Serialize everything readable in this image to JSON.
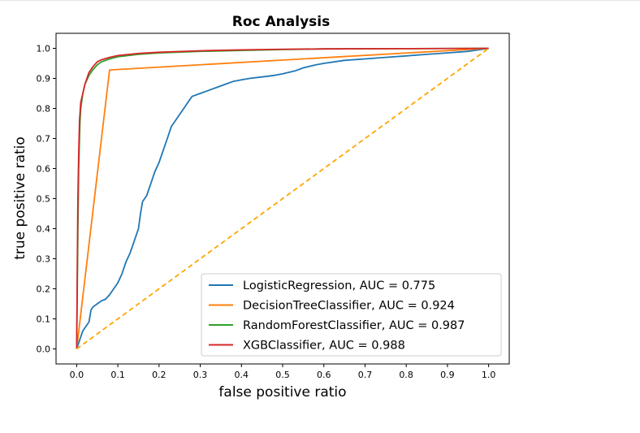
{
  "chart_data": {
    "type": "line",
    "title": "Roc Analysis",
    "xlabel": "false positive ratio",
    "ylabel": "true positive ratio",
    "xlim": [
      -0.05,
      1.05
    ],
    "ylim": [
      -0.05,
      1.05
    ],
    "xticks": [
      0.0,
      0.1,
      0.2,
      0.3,
      0.4,
      0.5,
      0.6,
      0.7,
      0.8,
      0.9,
      1.0
    ],
    "xtick_labels": [
      "0.0",
      "0.1",
      "0.2",
      "0.3",
      "0.4",
      "0.5",
      "0.6",
      "0.7",
      "0.8",
      "0.9",
      "1.0"
    ],
    "yticks": [
      0.0,
      0.1,
      0.2,
      0.3,
      0.4,
      0.5,
      0.6,
      0.7,
      0.8,
      0.9,
      1.0
    ],
    "ytick_labels": [
      "0.0",
      "0.1",
      "0.2",
      "0.3",
      "0.4",
      "0.5",
      "0.6",
      "0.7",
      "0.8",
      "0.9",
      "1.0"
    ],
    "legend_position": "lower-right",
    "series": [
      {
        "name": "LogisticRegression,  AUC = 0.775",
        "color": "#1f77b4",
        "x": [
          0,
          0.005,
          0.01,
          0.015,
          0.02,
          0.03,
          0.035,
          0.04,
          0.05,
          0.06,
          0.07,
          0.08,
          0.09,
          0.1,
          0.11,
          0.115,
          0.12,
          0.13,
          0.14,
          0.15,
          0.155,
          0.16,
          0.17,
          0.175,
          0.18,
          0.185,
          0.19,
          0.2,
          0.21,
          0.22,
          0.23,
          0.24,
          0.25,
          0.26,
          0.27,
          0.28,
          0.3,
          0.32,
          0.34,
          0.36,
          0.38,
          0.4,
          0.42,
          0.45,
          0.48,
          0.5,
          0.53,
          0.55,
          0.58,
          0.6,
          0.65,
          0.7,
          0.75,
          0.8,
          0.85,
          0.9,
          0.95,
          1.0
        ],
        "y": [
          0,
          0.02,
          0.04,
          0.06,
          0.07,
          0.09,
          0.13,
          0.14,
          0.15,
          0.16,
          0.165,
          0.18,
          0.2,
          0.22,
          0.25,
          0.27,
          0.29,
          0.32,
          0.36,
          0.4,
          0.45,
          0.49,
          0.51,
          0.53,
          0.55,
          0.57,
          0.59,
          0.62,
          0.66,
          0.7,
          0.74,
          0.76,
          0.78,
          0.8,
          0.82,
          0.84,
          0.85,
          0.86,
          0.87,
          0.88,
          0.89,
          0.895,
          0.9,
          0.905,
          0.91,
          0.915,
          0.925,
          0.935,
          0.945,
          0.95,
          0.96,
          0.965,
          0.97,
          0.975,
          0.98,
          0.985,
          0.99,
          1.0
        ]
      },
      {
        "name": "DecisionTreeClassifier,  AUC = 0.924",
        "color": "#ff7f0e",
        "x": [
          0,
          0.08,
          1.0
        ],
        "y": [
          0,
          0.928,
          1.0
        ]
      },
      {
        "name": "RandomForestClassifier,  AUC = 0.987",
        "color": "#2ca02c",
        "x": [
          0,
          0.003,
          0.005,
          0.008,
          0.01,
          0.015,
          0.02,
          0.03,
          0.04,
          0.05,
          0.06,
          0.08,
          0.1,
          0.15,
          0.2,
          0.3,
          0.4,
          0.5,
          0.6,
          0.8,
          1.0
        ],
        "y": [
          0,
          0.4,
          0.6,
          0.75,
          0.8,
          0.85,
          0.88,
          0.91,
          0.93,
          0.945,
          0.955,
          0.965,
          0.972,
          0.98,
          0.985,
          0.99,
          0.993,
          0.996,
          0.998,
          0.999,
          1.0
        ]
      },
      {
        "name": "XGBClassifier,  AUC = 0.988",
        "color": "#d62728",
        "x": [
          0,
          0.002,
          0.003,
          0.005,
          0.007,
          0.01,
          0.015,
          0.02,
          0.025,
          0.03,
          0.04,
          0.05,
          0.06,
          0.08,
          0.1,
          0.15,
          0.2,
          0.3,
          0.4,
          0.5,
          0.6,
          0.8,
          1.0
        ],
        "y": [
          0,
          0.35,
          0.5,
          0.65,
          0.76,
          0.82,
          0.85,
          0.88,
          0.9,
          0.92,
          0.94,
          0.955,
          0.962,
          0.97,
          0.976,
          0.983,
          0.987,
          0.992,
          0.995,
          0.997,
          0.998,
          0.999,
          1.0
        ]
      }
    ],
    "reference_line": {
      "color": "#ffa500",
      "style": "dashed",
      "x": [
        0,
        1
      ],
      "y": [
        0,
        1
      ]
    }
  }
}
